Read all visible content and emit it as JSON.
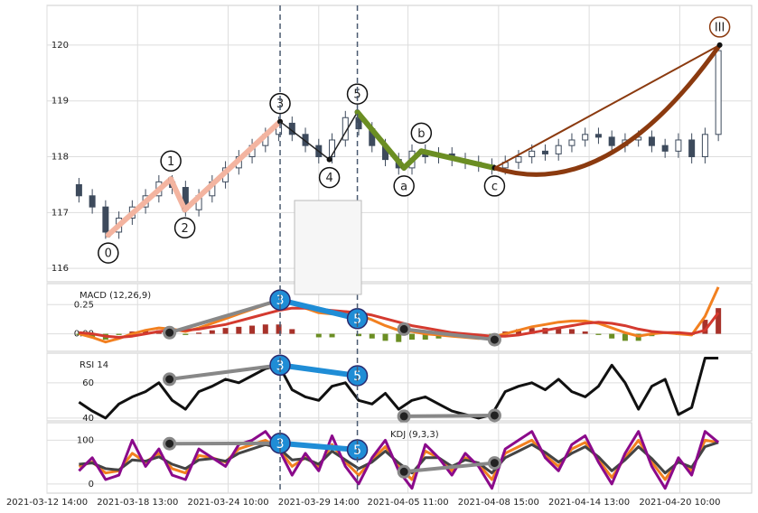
{
  "chart_data": [
    {
      "type": "candlestick",
      "color": "#3d4a5c",
      "open": [
        117.5,
        117.3,
        117.1,
        116.65,
        116.9,
        117.1,
        117.3,
        117.55,
        117.45,
        117.05,
        117.3,
        117.55,
        117.8,
        118.0,
        118.2,
        118.4,
        118.6,
        118.4,
        118.2,
        118.0,
        118.3,
        118.7,
        118.5,
        118.2,
        117.95,
        117.8,
        118.1,
        118.0,
        118.05,
        117.95,
        117.9,
        117.85,
        117.8,
        117.9,
        118.0,
        118.1,
        118.05,
        118.2,
        118.3,
        118.4,
        118.35,
        118.2,
        118.3,
        118.35,
        118.2,
        118.1,
        118.3,
        118.0,
        118.4
      ],
      "high": [
        117.62,
        117.42,
        117.22,
        117.02,
        117.22,
        117.42,
        117.67,
        117.67,
        117.57,
        117.42,
        117.67,
        117.92,
        118.12,
        118.32,
        118.52,
        118.72,
        118.72,
        118.52,
        118.32,
        118.42,
        118.82,
        118.82,
        118.62,
        118.32,
        118.07,
        118.22,
        118.22,
        118.17,
        118.17,
        118.07,
        118.02,
        117.97,
        118.02,
        118.12,
        118.22,
        118.22,
        118.32,
        118.42,
        118.52,
        118.52,
        118.47,
        118.42,
        118.47,
        118.47,
        118.32,
        118.42,
        118.42,
        118.52,
        120.02
      ],
      "low": [
        117.18,
        116.98,
        116.53,
        116.53,
        116.78,
        116.98,
        117.18,
        117.33,
        116.93,
        116.93,
        117.18,
        117.43,
        117.68,
        117.88,
        118.08,
        118.28,
        118.28,
        118.08,
        117.88,
        117.88,
        118.18,
        118.38,
        118.08,
        117.83,
        117.68,
        117.68,
        117.88,
        117.88,
        117.83,
        117.78,
        117.73,
        117.68,
        117.68,
        117.78,
        117.88,
        117.93,
        117.93,
        118.08,
        118.18,
        118.23,
        118.08,
        118.08,
        118.18,
        118.08,
        117.98,
        117.98,
        117.88,
        117.88,
        118.28
      ],
      "close": [
        117.3,
        117.1,
        116.65,
        116.9,
        117.1,
        117.3,
        117.55,
        117.45,
        117.05,
        117.3,
        117.55,
        117.8,
        118.0,
        118.2,
        118.4,
        118.6,
        118.4,
        118.2,
        118.0,
        118.3,
        118.7,
        118.5,
        118.2,
        117.95,
        117.8,
        118.1,
        118.0,
        118.05,
        117.95,
        117.9,
        117.85,
        117.8,
        117.9,
        118.0,
        118.1,
        118.05,
        118.2,
        118.3,
        118.4,
        118.35,
        118.2,
        118.3,
        118.35,
        118.2,
        118.1,
        118.3,
        118.0,
        118.4,
        119.9
      ],
      "ylim": [
        115.76,
        120.71
      ],
      "yticks": [
        116,
        117,
        118,
        119,
        120
      ],
      "xlim": [
        -2.4,
        50.5
      ],
      "xticks": [
        {
          "value": -2.4,
          "label": "2021-03-12 14:00"
        },
        {
          "value": 4.4,
          "label": "2021-03-18 13:00"
        },
        {
          "value": 11.2,
          "label": "2021-03-24 10:00"
        },
        {
          "value": 18,
          "label": "2021-03-29 14:00"
        },
        {
          "value": 24.7,
          "label": "2021-04-05 11:00"
        },
        {
          "value": 31.5,
          "label": "2021-04-08 15:00"
        },
        {
          "value": 38.3,
          "label": "2021-04-14 13:00"
        },
        {
          "value": 45.1,
          "label": "2021-04-20 10:00"
        }
      ],
      "vlines": [
        15.1,
        20.9
      ],
      "grid": true,
      "waves": [
        {
          "label": "0",
          "x": 2.2,
          "y": 116.6,
          "color": "#f3b4a0"
        },
        {
          "label": "1",
          "x": 6.9,
          "y": 117.6,
          "color": "#f3b4a0"
        },
        {
          "label": "2",
          "x": 7.95,
          "y": 117.05,
          "color": "#f3b4a0"
        },
        {
          "label": "3",
          "x": 15.1,
          "y": 118.63,
          "color": "#f3b4a0"
        },
        {
          "label": "4",
          "x": 18.8,
          "y": 117.95,
          "color": "#222222"
        },
        {
          "label": "5",
          "x": 20.9,
          "y": 118.8,
          "color": "#222222"
        },
        {
          "label": "a",
          "x": 24.4,
          "y": 117.8,
          "color": "#6b8e23"
        },
        {
          "label": "b",
          "x": 25.7,
          "y": 118.1,
          "color": "#6b8e23"
        },
        {
          "label": "c",
          "x": 31.2,
          "y": 117.8,
          "color": "#6b8e23"
        },
        {
          "label": "III",
          "x": 48.1,
          "y": 120,
          "color": "#8b3a0f"
        }
      ]
    },
    {
      "type": "macd",
      "title": "MACD (12,26,9)",
      "ylim": [
        -0.15,
        0.43
      ],
      "yticks": [
        {
          "value": 0,
          "label": "0.00"
        },
        {
          "value": 0.25,
          "label": "0.25"
        }
      ],
      "series": [
        {
          "color": "#f28020",
          "values": [
            0.0,
            -0.03,
            -0.07,
            -0.04,
            0.0,
            0.03,
            0.05,
            0.04,
            0.02,
            0.05,
            0.09,
            0.13,
            0.17,
            0.21,
            0.25,
            0.28,
            0.26,
            0.22,
            0.18,
            0.17,
            0.19,
            0.16,
            0.12,
            0.07,
            0.03,
            0.02,
            0.0,
            -0.01,
            -0.02,
            -0.03,
            -0.04,
            -0.03,
            0.0,
            0.03,
            0.06,
            0.08,
            0.1,
            0.11,
            0.11,
            0.09,
            0.05,
            0.01,
            -0.02,
            0.0,
            0.01,
            0.0,
            -0.01,
            0.15,
            0.4
          ]
        },
        {
          "color": "#d43a2f",
          "values": [
            0.01,
            0.0,
            -0.02,
            -0.03,
            -0.02,
            0.0,
            0.02,
            0.03,
            0.03,
            0.04,
            0.06,
            0.08,
            0.11,
            0.14,
            0.17,
            0.2,
            0.22,
            0.22,
            0.21,
            0.2,
            0.19,
            0.18,
            0.16,
            0.13,
            0.1,
            0.07,
            0.05,
            0.03,
            0.01,
            0.0,
            -0.01,
            -0.02,
            -0.02,
            -0.01,
            0.01,
            0.03,
            0.05,
            0.07,
            0.09,
            0.1,
            0.09,
            0.07,
            0.04,
            0.02,
            0.01,
            0.01,
            0.0,
            0.03,
            0.18
          ]
        }
      ],
      "histogram": {
        "up_color": "#a8322a",
        "down_color": "#6b8e23",
        "values": [
          -0.01,
          -0.03,
          -0.05,
          -0.01,
          0.02,
          0.03,
          0.03,
          0.01,
          -0.01,
          0.01,
          0.03,
          0.05,
          0.06,
          0.07,
          0.08,
          0.08,
          0.04,
          0.0,
          -0.03,
          -0.03,
          0.0,
          -0.02,
          -0.04,
          -0.06,
          -0.07,
          -0.05,
          -0.05,
          -0.04,
          -0.03,
          -0.03,
          -0.03,
          -0.01,
          0.02,
          0.04,
          0.05,
          0.05,
          0.05,
          0.04,
          0.02,
          -0.01,
          -0.04,
          -0.06,
          -0.06,
          -0.02,
          0.0,
          -0.01,
          -0.01,
          0.12,
          0.22
        ]
      },
      "divergence": [
        {
          "label": "3",
          "x": 15.1,
          "y": 0.29
        },
        {
          "label": "5",
          "x": 20.9,
          "y": 0.13
        }
      ],
      "divergence_color": "#1f8dd6",
      "trendlines": [
        {
          "x": [
            6.8,
            15.1
          ],
          "y": [
            0.01,
            0.29
          ]
        },
        {
          "x": [
            24.4,
            31.2
          ],
          "y": [
            0.04,
            -0.05
          ]
        }
      ],
      "trendline_color": "#888888"
    },
    {
      "type": "line",
      "title": "RSI 14",
      "ylim": [
        38.4,
        76.8
      ],
      "yticks": [
        40,
        60
      ],
      "series": [
        {
          "color": "#111111",
          "values": [
            49,
            44,
            40,
            48,
            52,
            55,
            60,
            50,
            45,
            55,
            58,
            62,
            60,
            64,
            68,
            70,
            56,
            52,
            50,
            58,
            60,
            50,
            48,
            54,
            45,
            50,
            52,
            48,
            44,
            42,
            40,
            42,
            55,
            58,
            60,
            56,
            62,
            55,
            52,
            58,
            70,
            60,
            45,
            58,
            62,
            42,
            46,
            74,
            74
          ]
        }
      ],
      "divergence": [
        {
          "label": "3",
          "x": 15.1,
          "y": 70
        },
        {
          "label": "5",
          "x": 20.9,
          "y": 64
        }
      ],
      "divergence_color": "#1f8dd6",
      "trendlines": [
        {
          "x": [
            6.8,
            15.1
          ],
          "y": [
            62,
            70
          ]
        },
        {
          "x": [
            24.4,
            31.2
          ],
          "y": [
            41,
            41.5
          ]
        }
      ],
      "trendline_color": "#888888"
    },
    {
      "type": "line",
      "title": "KDJ (9,3,3)",
      "ylim": [
        -21,
        140
      ],
      "yticks": [
        0,
        100
      ],
      "series": [
        {
          "color": "#f28020",
          "values": [
            40,
            50,
            25,
            30,
            70,
            50,
            70,
            35,
            25,
            65,
            60,
            50,
            80,
            90,
            100,
            80,
            40,
            60,
            40,
            90,
            50,
            20,
            55,
            85,
            40,
            10,
            75,
            60,
            30,
            60,
            45,
            10,
            70,
            85,
            100,
            65,
            40,
            80,
            95,
            55,
            15,
            60,
            100,
            50,
            10,
            55,
            30,
            100,
            95
          ]
        },
        {
          "color": "#444444",
          "values": [
            45,
            48,
            35,
            32,
            55,
            52,
            62,
            45,
            35,
            55,
            58,
            52,
            70,
            80,
            90,
            82,
            55,
            58,
            45,
            75,
            55,
            35,
            50,
            75,
            48,
            25,
            60,
            60,
            40,
            55,
            48,
            25,
            60,
            75,
            90,
            72,
            50,
            70,
            85,
            62,
            30,
            55,
            85,
            58,
            25,
            50,
            38,
            85,
            95
          ]
        },
        {
          "color": "#8b0a8b",
          "values": [
            30,
            60,
            10,
            20,
            100,
            40,
            80,
            20,
            10,
            80,
            60,
            40,
            90,
            100,
            120,
            80,
            20,
            70,
            30,
            110,
            40,
            0,
            60,
            100,
            30,
            -10,
            90,
            60,
            20,
            70,
            40,
            -10,
            80,
            100,
            120,
            60,
            30,
            90,
            110,
            50,
            0,
            70,
            120,
            40,
            -10,
            60,
            20,
            120,
            95
          ]
        }
      ],
      "divergence": [
        {
          "label": "3",
          "x": 15.1,
          "y": 93
        },
        {
          "label": "5",
          "x": 20.9,
          "y": 78
        }
      ],
      "divergence_color": "#1f8dd6",
      "trendlines": [
        {
          "x": [
            6.8,
            15.1
          ],
          "y": [
            92,
            93
          ]
        },
        {
          "x": [
            24.4,
            31.2
          ],
          "y": [
            28,
            48
          ]
        }
      ],
      "trendline_color": "#888888"
    }
  ]
}
